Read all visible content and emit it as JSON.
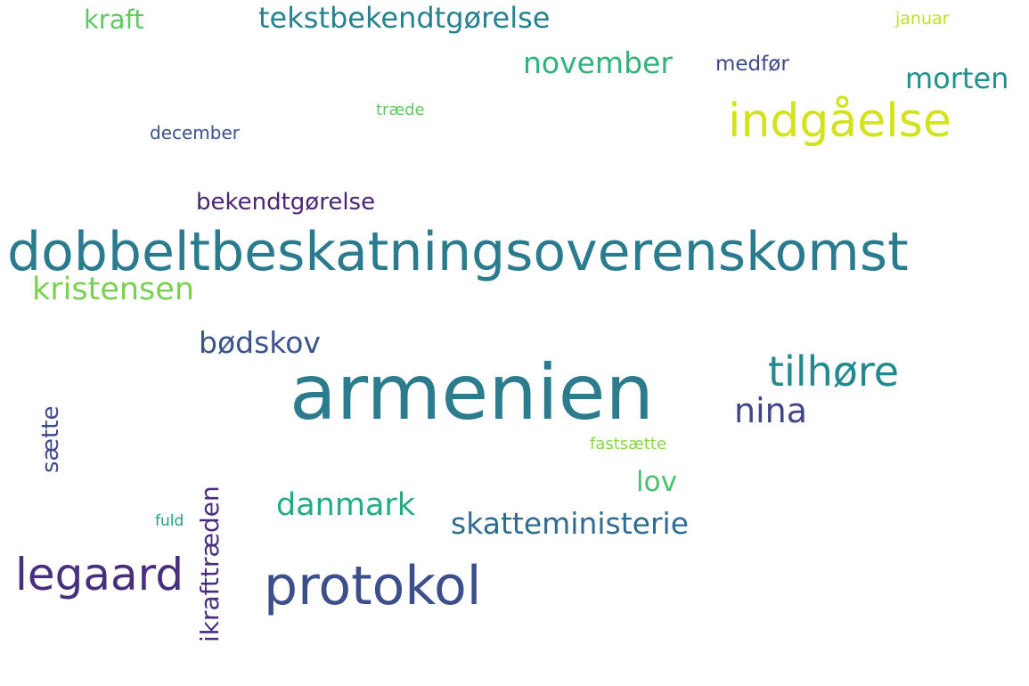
{
  "wordcloud": {
    "background_color": "#ffffff",
    "words": {
      "armenien": {
        "text": "armenien",
        "color": "#2c7c8e"
      },
      "dobbelt": {
        "text": "dobbeltbeskatningsoverenskomst",
        "color": "#2b7b8e"
      },
      "protokol": {
        "text": "protokol",
        "color": "#3d4f8a"
      },
      "indgaaelse": {
        "text": "indgåelse",
        "color": "#d2e21b"
      },
      "legaard": {
        "text": "legaard",
        "color": "#472f7d"
      },
      "tilhoere": {
        "text": "tilhøre",
        "color": "#23898e"
      },
      "nina": {
        "text": "nina",
        "color": "#414487"
      },
      "kristensen": {
        "text": "kristensen",
        "color": "#7ad151"
      },
      "danmark": {
        "text": "danmark",
        "color": "#25ab82"
      },
      "skatteministerie": {
        "text": "skatteministerie",
        "color": "#2f6b8e"
      },
      "november": {
        "text": "november",
        "color": "#2fb47c"
      },
      "bodskov": {
        "text": "bødskov",
        "color": "#3b528b"
      },
      "tekstbek": {
        "text": "tekstbekendtgørelse",
        "color": "#26828e"
      },
      "morten": {
        "text": "morten",
        "color": "#21918c"
      },
      "lov": {
        "text": "lov",
        "color": "#4ac16d"
      },
      "kraft": {
        "text": "kraft",
        "color": "#5ec962"
      },
      "bekendt": {
        "text": "bekendtgørelse",
        "color": "#482576"
      },
      "medfoer": {
        "text": "medfør",
        "color": "#3e4989"
      },
      "december": {
        "text": "december",
        "color": "#3b528b"
      },
      "januar": {
        "text": "januar",
        "color": "#c2df23"
      },
      "fastsaette": {
        "text": "fastsætte",
        "color": "#86d549"
      },
      "traede": {
        "text": "træde",
        "color": "#5ec962"
      },
      "fuld": {
        "text": "fuld",
        "color": "#1fa187"
      },
      "saette": {
        "text": "sætte",
        "color": "#3e4a89"
      },
      "ikrafttraeden": {
        "text": "ikrafttræden",
        "color": "#472d7b"
      }
    }
  }
}
